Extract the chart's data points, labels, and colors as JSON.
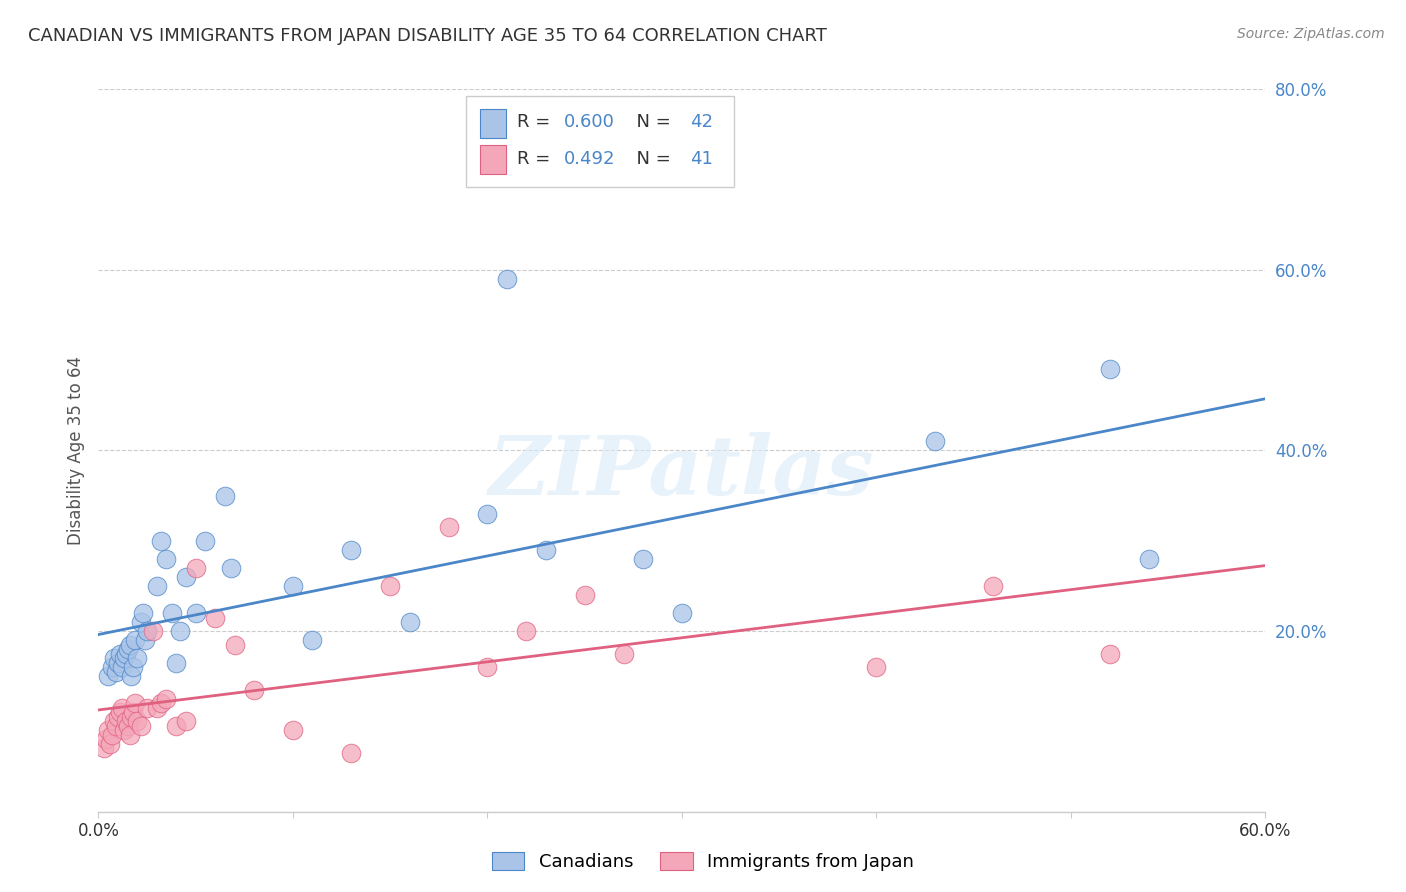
{
  "title": "CANADIAN VS IMMIGRANTS FROM JAPAN DISABILITY AGE 35 TO 64 CORRELATION CHART",
  "source": "Source: ZipAtlas.com",
  "ylabel": "Disability Age 35 to 64",
  "xlim": [
    0.0,
    0.6
  ],
  "ylim": [
    0.0,
    0.8
  ],
  "xticks": [
    0.0,
    0.1,
    0.2,
    0.3,
    0.4,
    0.5,
    0.6
  ],
  "yticks": [
    0.0,
    0.2,
    0.4,
    0.6,
    0.8
  ],
  "xticklabels": [
    "0.0%",
    "",
    "",
    "",
    "",
    "",
    "60.0%"
  ],
  "yticklabels": [
    "",
    "20.0%",
    "40.0%",
    "60.0%",
    "80.0%"
  ],
  "grid_color": "#cccccc",
  "background_color": "#ffffff",
  "canadians_color": "#aac4e8",
  "immigrants_color": "#f4a7b9",
  "line_canadian_color": "#4a86c8",
  "line_immigrant_color": "#e06080",
  "accent_color": "#4a86c8",
  "R_canadian": 0.6,
  "N_canadian": 42,
  "R_immigrant": 0.492,
  "N_immigrant": 41,
  "legend_label_canadian": "Canadians",
  "legend_label_immigrant": "Immigrants from Japan",
  "watermark": "ZIPatlas",
  "canadians_x": [
    0.005,
    0.007,
    0.008,
    0.009,
    0.01,
    0.011,
    0.012,
    0.013,
    0.014,
    0.015,
    0.016,
    0.017,
    0.018,
    0.019,
    0.02,
    0.022,
    0.023,
    0.024,
    0.025,
    0.03,
    0.032,
    0.035,
    0.038,
    0.04,
    0.042,
    0.045,
    0.05,
    0.055,
    0.065,
    0.068,
    0.1,
    0.11,
    0.13,
    0.16,
    0.2,
    0.21,
    0.23,
    0.28,
    0.3,
    0.43,
    0.52,
    0.54
  ],
  "canadians_y": [
    0.15,
    0.16,
    0.17,
    0.155,
    0.165,
    0.175,
    0.16,
    0.17,
    0.175,
    0.18,
    0.185,
    0.15,
    0.16,
    0.19,
    0.17,
    0.21,
    0.22,
    0.19,
    0.2,
    0.25,
    0.3,
    0.28,
    0.22,
    0.165,
    0.2,
    0.26,
    0.22,
    0.3,
    0.35,
    0.27,
    0.25,
    0.19,
    0.29,
    0.21,
    0.33,
    0.59,
    0.29,
    0.28,
    0.22,
    0.41,
    0.49,
    0.28
  ],
  "immigrants_x": [
    0.003,
    0.004,
    0.005,
    0.006,
    0.007,
    0.008,
    0.009,
    0.01,
    0.011,
    0.012,
    0.013,
    0.014,
    0.015,
    0.016,
    0.017,
    0.018,
    0.019,
    0.02,
    0.022,
    0.025,
    0.028,
    0.03,
    0.032,
    0.035,
    0.04,
    0.045,
    0.05,
    0.06,
    0.07,
    0.08,
    0.1,
    0.13,
    0.15,
    0.18,
    0.2,
    0.22,
    0.25,
    0.27,
    0.4,
    0.46,
    0.52
  ],
  "immigrants_y": [
    0.07,
    0.08,
    0.09,
    0.075,
    0.085,
    0.1,
    0.095,
    0.105,
    0.11,
    0.115,
    0.09,
    0.1,
    0.095,
    0.085,
    0.105,
    0.11,
    0.12,
    0.1,
    0.095,
    0.115,
    0.2,
    0.115,
    0.12,
    0.125,
    0.095,
    0.1,
    0.27,
    0.215,
    0.185,
    0.135,
    0.09,
    0.065,
    0.25,
    0.315,
    0.16,
    0.2,
    0.24,
    0.175,
    0.16,
    0.25,
    0.175
  ]
}
